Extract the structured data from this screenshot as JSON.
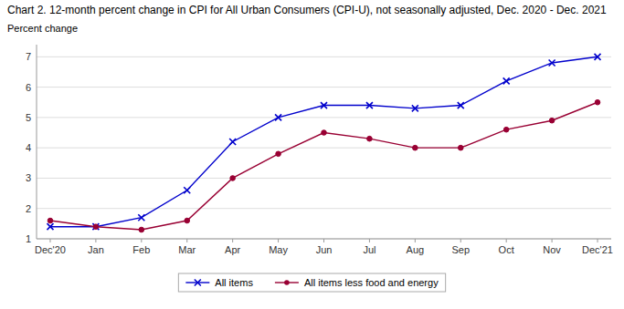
{
  "chart_data": {
    "type": "line",
    "title": "Chart 2. 12-month percent change in CPI for All Urban Consumers (CPI-U), not seasonally adjusted, Dec. 2020 - Dec. 2021",
    "ylabel": "Percent change",
    "categories": [
      "Dec'20",
      "Jan",
      "Feb",
      "Mar",
      "Apr",
      "May",
      "Jun",
      "Jul",
      "Aug",
      "Sep",
      "Oct",
      "Nov",
      "Dec'21"
    ],
    "series": [
      {
        "name": "All items",
        "color": "#0000cc",
        "marker": "x",
        "values": [
          1.4,
          1.4,
          1.7,
          2.6,
          4.2,
          5.0,
          5.4,
          5.4,
          5.3,
          5.4,
          6.2,
          6.8,
          7.0
        ]
      },
      {
        "name": "All items less food and energy",
        "color": "#990033",
        "marker": "circle",
        "values": [
          1.6,
          1.4,
          1.3,
          1.6,
          3.0,
          3.8,
          4.5,
          4.3,
          4.0,
          4.0,
          4.6,
          4.9,
          5.5
        ]
      }
    ],
    "ylim": [
      1.0,
      7.4
    ],
    "yticks": [
      1,
      2,
      3,
      4,
      5,
      6,
      7
    ],
    "grid": true,
    "legend": "bottom"
  }
}
